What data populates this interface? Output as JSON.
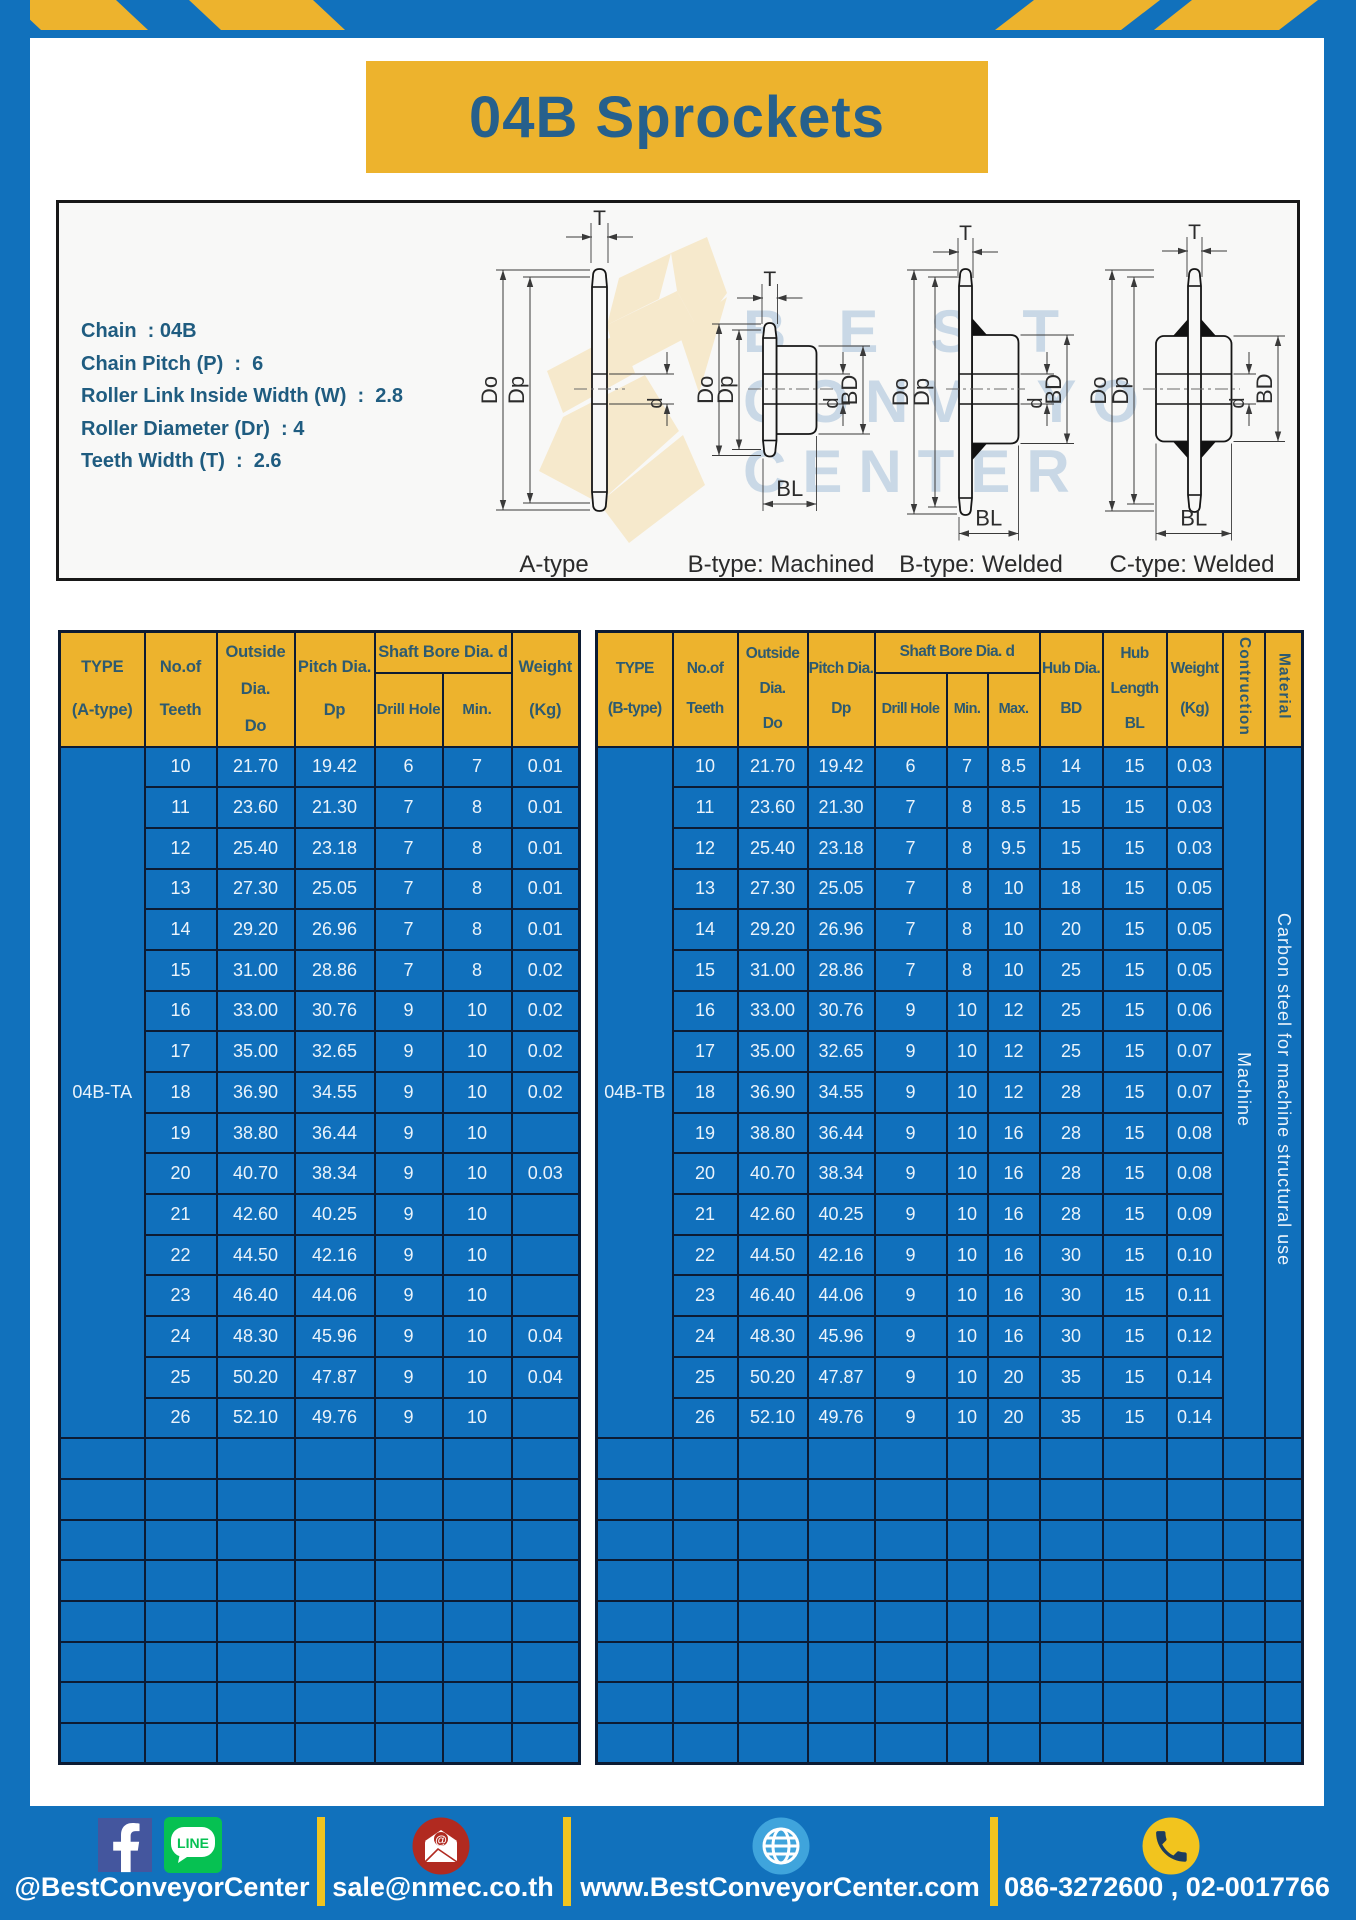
{
  "page": {
    "title": "04B Sprockets"
  },
  "specs": {
    "lines": [
      "Chain  : 04B",
      "Chain Pitch (P)  :  6",
      "Roller Link Inside Width (W)  :  2.8",
      "Roller Diameter (Dr)  : 4",
      "Teeth Width (T)  :  2.6"
    ]
  },
  "diagram": {
    "dims": {
      "t": "T",
      "do": "Do",
      "dp": "Dp",
      "d": "d",
      "bd": "BD",
      "bl": "BL"
    },
    "types": [
      {
        "caption": "A-type"
      },
      {
        "caption": "B-type: Machined"
      },
      {
        "caption": "B-type: Welded"
      },
      {
        "caption": "C-type: Welded"
      }
    ],
    "watermark": {
      "lines": [
        "BEST",
        "CONVEYOR",
        "CENTER"
      ]
    }
  },
  "table_a": {
    "header": {
      "type": [
        "TYPE",
        "(A-type)"
      ],
      "teeth": [
        "No.of",
        "Teeth"
      ],
      "outside": [
        "Outside",
        "Dia.",
        "Do"
      ],
      "pitch": [
        "Pitch Dia.",
        "Dp"
      ],
      "shaft_bore": "Shaft Bore Dia. d",
      "drill_hole": "Drill Hole",
      "min": "Min.",
      "weight": [
        "Weight",
        "(Kg)"
      ]
    },
    "type_label": "04B-TA",
    "rows": [
      [
        "10",
        "21.70",
        "19.42",
        "6",
        "7",
        "0.01"
      ],
      [
        "11",
        "23.60",
        "21.30",
        "7",
        "8",
        "0.01"
      ],
      [
        "12",
        "25.40",
        "23.18",
        "7",
        "8",
        "0.01"
      ],
      [
        "13",
        "27.30",
        "25.05",
        "7",
        "8",
        "0.01"
      ],
      [
        "14",
        "29.20",
        "26.96",
        "7",
        "8",
        "0.01"
      ],
      [
        "15",
        "31.00",
        "28.86",
        "7",
        "8",
        "0.02"
      ],
      [
        "16",
        "33.00",
        "30.76",
        "9",
        "10",
        "0.02"
      ],
      [
        "17",
        "35.00",
        "32.65",
        "9",
        "10",
        "0.02"
      ],
      [
        "18",
        "36.90",
        "34.55",
        "9",
        "10",
        "0.02"
      ],
      [
        "19",
        "38.80",
        "36.44",
        "9",
        "10",
        ""
      ],
      [
        "20",
        "40.70",
        "38.34",
        "9",
        "10",
        "0.03"
      ],
      [
        "21",
        "42.60",
        "40.25",
        "9",
        "10",
        ""
      ],
      [
        "22",
        "44.50",
        "42.16",
        "9",
        "10",
        ""
      ],
      [
        "23",
        "46.40",
        "44.06",
        "9",
        "10",
        ""
      ],
      [
        "24",
        "48.30",
        "45.96",
        "9",
        "10",
        "0.04"
      ],
      [
        "25",
        "50.20",
        "47.87",
        "9",
        "10",
        "0.04"
      ],
      [
        "26",
        "52.10",
        "49.76",
        "9",
        "10",
        ""
      ]
    ],
    "empty_rows": 8
  },
  "table_b": {
    "header": {
      "type": [
        "TYPE",
        "(B-type)"
      ],
      "teeth": [
        "No.of",
        "Teeth"
      ],
      "outside": [
        "Outside",
        "Dia.",
        "Do"
      ],
      "pitch": [
        "Pitch Dia.",
        "Dp"
      ],
      "shaft_bore": "Shaft Bore Dia. d",
      "drill_hole": "Drill Hole",
      "min": "Min.",
      "max": "Max.",
      "hub_dia": [
        "Hub Dia.",
        "BD"
      ],
      "hub_length": [
        "Hub",
        "Length",
        "BL"
      ],
      "weight": [
        "Weight",
        "(Kg)"
      ],
      "construction": "Contruction",
      "material": "Material"
    },
    "type_label": "04B-TB",
    "construction_value": "Machine",
    "material_value": "Carbon steel for machine structural use",
    "rows": [
      [
        "10",
        "21.70",
        "19.42",
        "6",
        "7",
        "8.5",
        "14",
        "15",
        "0.03"
      ],
      [
        "11",
        "23.60",
        "21.30",
        "7",
        "8",
        "8.5",
        "15",
        "15",
        "0.03"
      ],
      [
        "12",
        "25.40",
        "23.18",
        "7",
        "8",
        "9.5",
        "15",
        "15",
        "0.03"
      ],
      [
        "13",
        "27.30",
        "25.05",
        "7",
        "8",
        "10",
        "18",
        "15",
        "0.05"
      ],
      [
        "14",
        "29.20",
        "26.96",
        "7",
        "8",
        "10",
        "20",
        "15",
        "0.05"
      ],
      [
        "15",
        "31.00",
        "28.86",
        "7",
        "8",
        "10",
        "25",
        "15",
        "0.05"
      ],
      [
        "16",
        "33.00",
        "30.76",
        "9",
        "10",
        "12",
        "25",
        "15",
        "0.06"
      ],
      [
        "17",
        "35.00",
        "32.65",
        "9",
        "10",
        "12",
        "25",
        "15",
        "0.07"
      ],
      [
        "18",
        "36.90",
        "34.55",
        "9",
        "10",
        "12",
        "28",
        "15",
        "0.07"
      ],
      [
        "19",
        "38.80",
        "36.44",
        "9",
        "10",
        "16",
        "28",
        "15",
        "0.08"
      ],
      [
        "20",
        "40.70",
        "38.34",
        "9",
        "10",
        "16",
        "28",
        "15",
        "0.08"
      ],
      [
        "21",
        "42.60",
        "40.25",
        "9",
        "10",
        "16",
        "28",
        "15",
        "0.09"
      ],
      [
        "22",
        "44.50",
        "42.16",
        "9",
        "10",
        "16",
        "30",
        "15",
        "0.10"
      ],
      [
        "23",
        "46.40",
        "44.06",
        "9",
        "10",
        "16",
        "30",
        "15",
        "0.11"
      ],
      [
        "24",
        "48.30",
        "45.96",
        "9",
        "10",
        "16",
        "30",
        "15",
        "0.12"
      ],
      [
        "25",
        "50.20",
        "47.87",
        "9",
        "10",
        "20",
        "35",
        "15",
        "0.14"
      ],
      [
        "26",
        "52.10",
        "49.76",
        "9",
        "10",
        "20",
        "35",
        "15",
        "0.14"
      ]
    ],
    "empty_rows": 8
  },
  "footer": {
    "social": "@BestConveyorCenter",
    "line_badge": "LINE",
    "email": "sale@nmec.co.th",
    "website": "www.BestConveyorCenter.com",
    "phones": "086-3272600 , 02-0017766"
  },
  "colors": {
    "frame_blue": "#1171bc",
    "gold": "#edb32d",
    "grid": "#0c1b33",
    "header_text": "#2d5a70",
    "title_text": "#26608c"
  }
}
